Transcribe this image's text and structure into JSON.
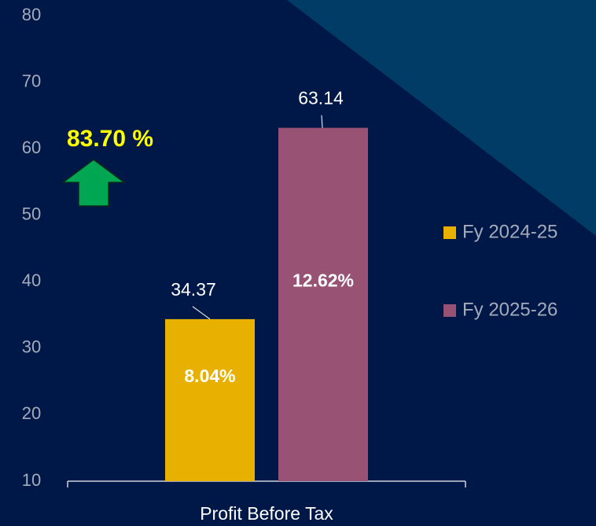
{
  "chart_data": {
    "type": "bar",
    "categories": [
      "Profit Before Tax"
    ],
    "series": [
      {
        "name": "Fy 2024-25",
        "color": "#e8b000",
        "values": [
          34.37
        ],
        "inner_labels": [
          "8.04%"
        ]
      },
      {
        "name": "Fy 2025-26",
        "color": "#985274",
        "values": [
          63.14
        ],
        "inner_labels": [
          "12.62%"
        ]
      }
    ],
    "ylim": [
      10,
      80
    ],
    "yticks": [
      10,
      20,
      30,
      40,
      50,
      60,
      70,
      80
    ],
    "annotation": "83.70 %",
    "legend": "right"
  }
}
